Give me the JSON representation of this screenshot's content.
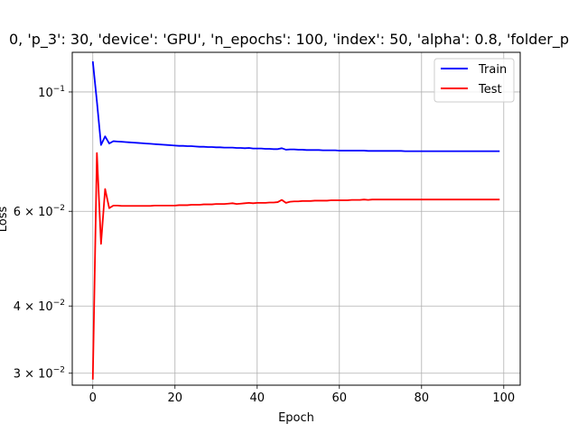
{
  "chart_data": {
    "type": "line",
    "title": "0, 'p_3': 30, 'device': 'GPU', 'n_epochs': 100, 'index': 50, 'alpha': 0.8, 'folder_p",
    "xlabel": "Epoch",
    "ylabel": "Loss",
    "xlim": [
      -5,
      104
    ],
    "ylim": [
      0.0285,
      0.1185
    ],
    "yscale": "log",
    "grid": true,
    "legend_position": "top-right",
    "x_ticks": [
      0,
      20,
      40,
      60,
      80,
      100
    ],
    "x_tick_labels": [
      "0",
      "20",
      "40",
      "60",
      "80",
      "100"
    ],
    "y_ticks": [
      0.1,
      0.06,
      0.04,
      0.03
    ],
    "y_tick_labels": [
      {
        "base": "10",
        "exp": "−1"
      },
      {
        "base": "6 × 10",
        "exp": "−2"
      },
      {
        "base": "4 × 10",
        "exp": "−2"
      },
      {
        "base": "3 × 10",
        "exp": "−2"
      }
    ],
    "x": [
      0,
      1,
      2,
      3,
      4,
      5,
      6,
      7,
      8,
      9,
      10,
      11,
      12,
      13,
      14,
      15,
      16,
      17,
      18,
      19,
      20,
      21,
      22,
      23,
      24,
      25,
      26,
      27,
      28,
      29,
      30,
      31,
      32,
      33,
      34,
      35,
      36,
      37,
      38,
      39,
      40,
      41,
      42,
      43,
      44,
      45,
      46,
      47,
      48,
      49,
      50,
      51,
      52,
      53,
      54,
      55,
      56,
      57,
      58,
      59,
      60,
      61,
      62,
      63,
      64,
      65,
      66,
      67,
      68,
      69,
      70,
      71,
      72,
      73,
      74,
      75,
      76,
      77,
      78,
      79,
      80,
      81,
      82,
      83,
      84,
      85,
      86,
      87,
      88,
      89,
      90,
      91,
      92,
      93,
      94,
      95,
      96,
      97,
      98,
      99
    ],
    "series": [
      {
        "name": "Train",
        "color": "#0000ff",
        "values": [
          0.114,
          0.096,
          0.0797,
          0.0827,
          0.0802,
          0.081,
          0.0809,
          0.0808,
          0.0807,
          0.0806,
          0.0805,
          0.0804,
          0.0803,
          0.0802,
          0.0801,
          0.08,
          0.0799,
          0.0798,
          0.0797,
          0.0796,
          0.0795,
          0.0794,
          0.0794,
          0.0793,
          0.0793,
          0.0792,
          0.0791,
          0.0791,
          0.079,
          0.079,
          0.0789,
          0.0789,
          0.0788,
          0.0788,
          0.0788,
          0.0787,
          0.0787,
          0.0786,
          0.0787,
          0.0785,
          0.0785,
          0.0785,
          0.0784,
          0.0784,
          0.0783,
          0.0783,
          0.0786,
          0.0781,
          0.0782,
          0.0782,
          0.0781,
          0.0781,
          0.078,
          0.078,
          0.078,
          0.078,
          0.0779,
          0.0779,
          0.0779,
          0.0779,
          0.0778,
          0.0778,
          0.0778,
          0.0778,
          0.0778,
          0.0778,
          0.0778,
          0.0777,
          0.0777,
          0.0777,
          0.0777,
          0.0777,
          0.0777,
          0.0777,
          0.0777,
          0.0777,
          0.0776,
          0.0776,
          0.0776,
          0.0776,
          0.0776,
          0.0776,
          0.0776,
          0.0776,
          0.0776,
          0.0776,
          0.0776,
          0.0776,
          0.0776,
          0.0776,
          0.0776,
          0.0776,
          0.0776,
          0.0776,
          0.0776,
          0.0776,
          0.0776,
          0.0776,
          0.0776,
          0.0776
        ]
      },
      {
        "name": "Test",
        "color": "#ff0000",
        "values": [
          0.0292,
          0.077,
          0.0522,
          0.066,
          0.0608,
          0.0615,
          0.0615,
          0.0614,
          0.0614,
          0.0614,
          0.0614,
          0.0614,
          0.0614,
          0.0614,
          0.0614,
          0.0615,
          0.0615,
          0.0615,
          0.0615,
          0.0615,
          0.0615,
          0.0616,
          0.0616,
          0.0616,
          0.0617,
          0.0617,
          0.0617,
          0.0618,
          0.0618,
          0.0618,
          0.0619,
          0.0619,
          0.0619,
          0.062,
          0.0621,
          0.0619,
          0.062,
          0.0621,
          0.0622,
          0.0621,
          0.0622,
          0.0622,
          0.0622,
          0.0623,
          0.0623,
          0.0624,
          0.063,
          0.0622,
          0.0625,
          0.0626,
          0.0626,
          0.0627,
          0.0627,
          0.0627,
          0.0628,
          0.0628,
          0.0628,
          0.0628,
          0.0629,
          0.0629,
          0.0629,
          0.0629,
          0.0629,
          0.063,
          0.063,
          0.063,
          0.0631,
          0.063,
          0.0631,
          0.0631,
          0.0631,
          0.0631,
          0.0631,
          0.0631,
          0.0631,
          0.0631,
          0.0631,
          0.0631,
          0.0631,
          0.0631,
          0.0631,
          0.0631,
          0.0631,
          0.0631,
          0.0631,
          0.0631,
          0.0631,
          0.0631,
          0.0631,
          0.0631,
          0.0631,
          0.0631,
          0.0631,
          0.0631,
          0.0631,
          0.0631,
          0.0631,
          0.0631,
          0.0631,
          0.0631
        ]
      }
    ]
  }
}
